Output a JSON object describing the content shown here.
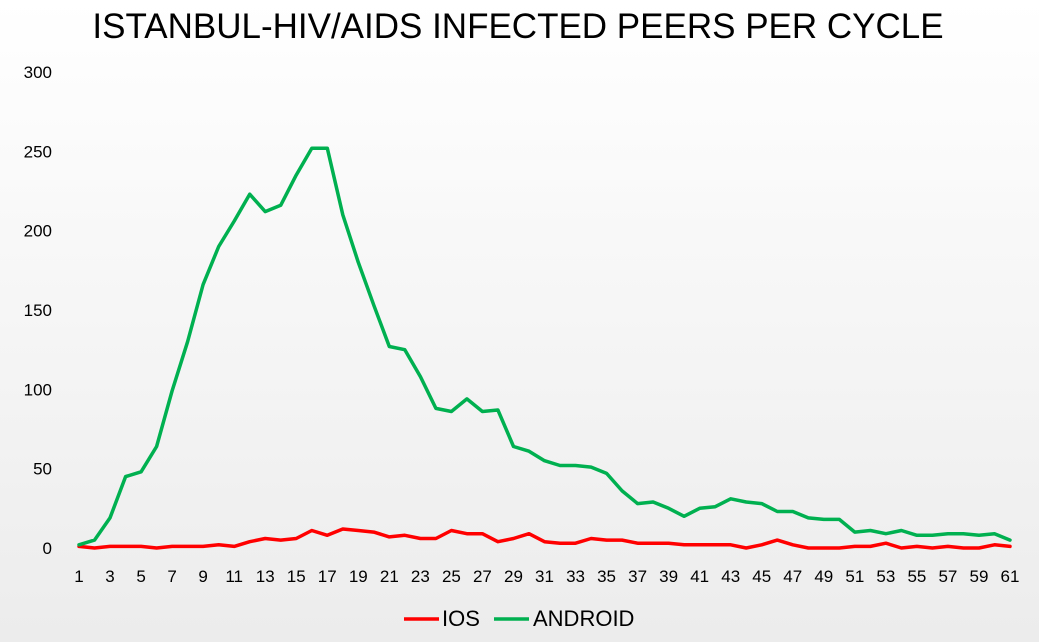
{
  "chart_data": {
    "type": "line",
    "title": "ISTANBUL-HIV/AIDS INFECTED PEERS PER CYCLE",
    "xlabel": "",
    "ylabel": "",
    "ylim": [
      0,
      300
    ],
    "yticks": [
      0,
      50,
      100,
      150,
      200,
      250,
      300
    ],
    "xlim": [
      1,
      61
    ],
    "xticks": [
      1,
      3,
      5,
      7,
      9,
      11,
      13,
      15,
      17,
      19,
      21,
      23,
      25,
      27,
      29,
      31,
      33,
      35,
      37,
      39,
      41,
      43,
      45,
      47,
      49,
      51,
      53,
      55,
      57,
      59,
      61
    ],
    "grid": false,
    "legend": "bottom",
    "x": [
      1,
      2,
      3,
      4,
      5,
      6,
      7,
      8,
      9,
      10,
      11,
      12,
      13,
      14,
      15,
      16,
      17,
      18,
      19,
      20,
      21,
      22,
      23,
      24,
      25,
      26,
      27,
      28,
      29,
      30,
      31,
      32,
      33,
      34,
      35,
      36,
      37,
      38,
      39,
      40,
      41,
      42,
      43,
      44,
      45,
      46,
      47,
      48,
      49,
      50,
      51,
      52,
      53,
      54,
      55,
      56,
      57,
      58,
      59,
      60,
      61
    ],
    "series": [
      {
        "name": "IOS",
        "color": "#ff0000",
        "values": [
          1,
          0,
          1,
          1,
          1,
          0,
          1,
          1,
          1,
          2,
          1,
          4,
          6,
          5,
          6,
          11,
          8,
          12,
          11,
          10,
          7,
          8,
          6,
          6,
          11,
          9,
          9,
          4,
          6,
          9,
          4,
          3,
          3,
          6,
          5,
          5,
          3,
          3,
          3,
          2,
          2,
          2,
          2,
          0,
          2,
          5,
          2,
          0,
          0,
          0,
          1,
          1,
          3,
          0,
          1,
          0,
          1,
          0,
          0,
          2,
          1
        ]
      },
      {
        "name": "ANDROID",
        "color": "#00b050",
        "values": [
          2,
          5,
          19,
          45,
          48,
          64,
          99,
          130,
          166,
          190,
          206,
          223,
          212,
          216,
          235,
          252,
          252,
          210,
          180,
          153,
          127,
          125,
          108,
          88,
          86,
          94,
          86,
          87,
          64,
          61,
          55,
          52,
          52,
          51,
          47,
          36,
          28,
          29,
          25,
          20,
          25,
          26,
          31,
          29,
          28,
          23,
          23,
          19,
          18,
          18,
          10,
          11,
          9,
          11,
          8,
          8,
          9,
          9,
          8,
          9,
          5
        ]
      }
    ]
  }
}
